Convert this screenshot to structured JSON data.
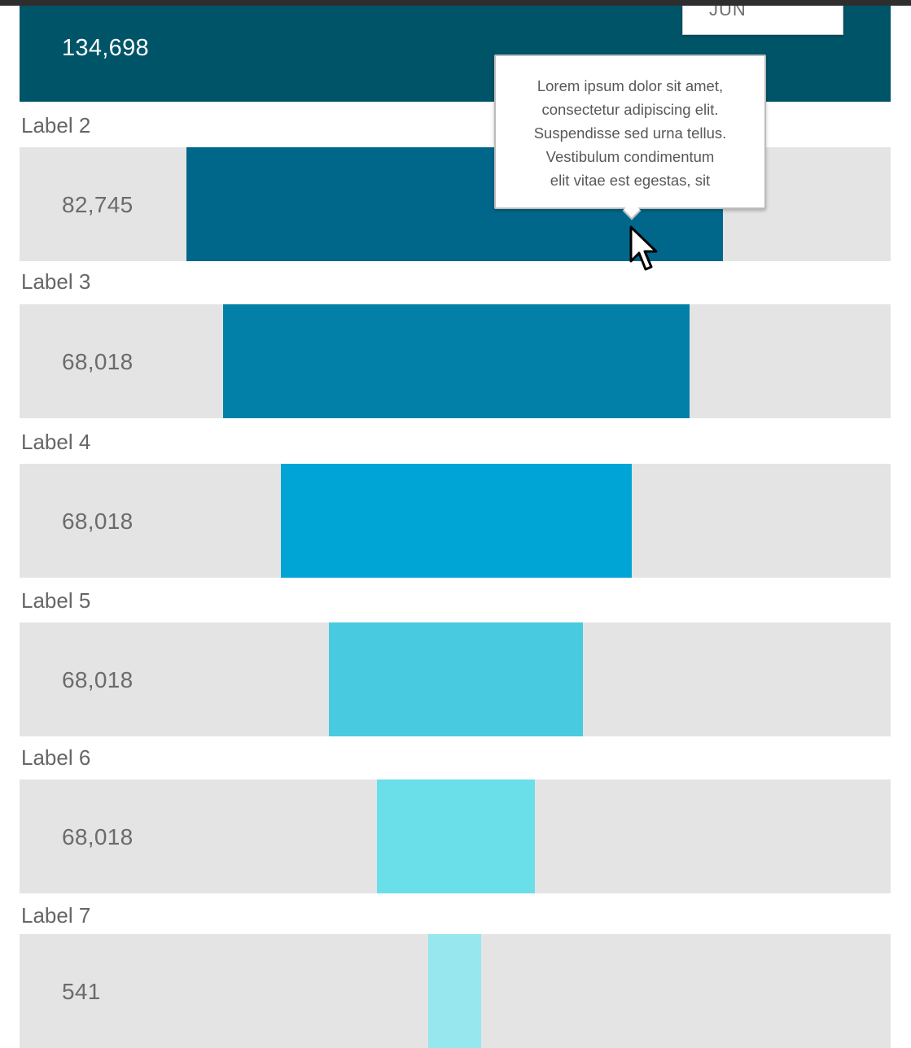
{
  "header": {
    "month_label": "JUN",
    "first_value": "134,698"
  },
  "rows": [
    {
      "label": "Label 2",
      "value": "82,745",
      "color": "#00678A"
    },
    {
      "label": "Label 3",
      "value": "68,018",
      "color": "#0280A8"
    },
    {
      "label": "Label 4",
      "value": "68,018",
      "color": "#00A5D6"
    },
    {
      "label": "Label 5",
      "value": "68,018",
      "color": "#48CAE0"
    },
    {
      "label": "Label 6",
      "value": "68,018",
      "color": "#6ADFEA"
    },
    {
      "label": "Label 7",
      "value": "541",
      "color": "#96E7EE"
    }
  ],
  "colors": {
    "first_row": "#005468",
    "track": "#E4E4E4"
  },
  "tooltip": {
    "lines": [
      "Lorem ipsum dolor sit amet,",
      "consectetur adipiscing elit.",
      "Suspendisse sed urna tellus.",
      "Vestibulum condimentum",
      "elit vitae est egestas, sit"
    ]
  },
  "cursor": "arrow-pointer-icon"
}
